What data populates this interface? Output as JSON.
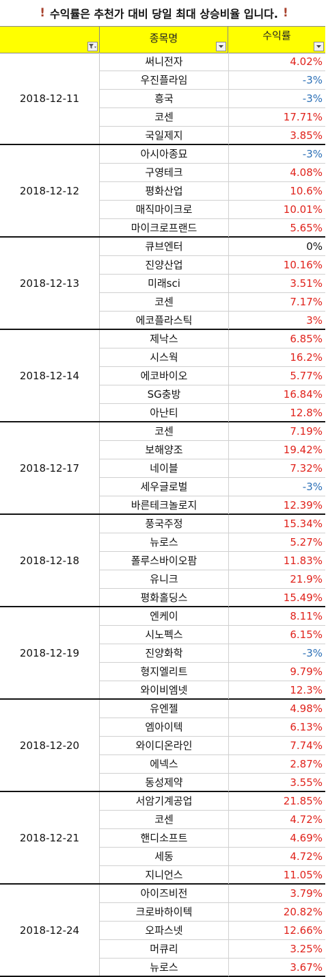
{
  "notice": {
    "icon_left": "!",
    "text": "수익률은 추천가 대비 당일 최대 상승비율 입니다.",
    "icon_right": "!"
  },
  "colors": {
    "positive": "#e0221b",
    "negative": "#2b6fb6",
    "zero": "#111111",
    "header_bg": "#ffff00",
    "accent": "#a8432e"
  },
  "header": {
    "stock_col": "종목명",
    "return_col": "수익률",
    "filter_icon_active": "filter-applied-icon",
    "filter_icon": "dropdown-arrow-icon"
  },
  "groups": [
    {
      "date": "2018-12-11",
      "rows": [
        {
          "name": "써니전자",
          "rate": "4.02%",
          "sign": "pos"
        },
        {
          "name": "우진플라임",
          "rate": "-3%",
          "sign": "neg"
        },
        {
          "name": "흥국",
          "rate": "-3%",
          "sign": "neg"
        },
        {
          "name": "코센",
          "rate": "17.71%",
          "sign": "pos"
        },
        {
          "name": "국일제지",
          "rate": "3.85%",
          "sign": "pos"
        }
      ]
    },
    {
      "date": "2018-12-12",
      "rows": [
        {
          "name": "아시아종묘",
          "rate": "-3%",
          "sign": "neg"
        },
        {
          "name": "구영테크",
          "rate": "4.08%",
          "sign": "pos"
        },
        {
          "name": "평화산업",
          "rate": "10.6%",
          "sign": "pos"
        },
        {
          "name": "매직마이크로",
          "rate": "10.01%",
          "sign": "pos"
        },
        {
          "name": "마이크로프랜드",
          "rate": "5.65%",
          "sign": "pos"
        }
      ]
    },
    {
      "date": "2018-12-13",
      "rows": [
        {
          "name": "큐브엔터",
          "rate": "0%",
          "sign": "zero"
        },
        {
          "name": "진양산업",
          "rate": "10.16%",
          "sign": "pos"
        },
        {
          "name": "미래sci",
          "rate": "3.51%",
          "sign": "pos"
        },
        {
          "name": "코센",
          "rate": "7.17%",
          "sign": "pos"
        },
        {
          "name": "에코플라스틱",
          "rate": "3%",
          "sign": "pos"
        }
      ]
    },
    {
      "date": "2018-12-14",
      "rows": [
        {
          "name": "제낙스",
          "rate": "6.85%",
          "sign": "pos"
        },
        {
          "name": "시스웍",
          "rate": "16.2%",
          "sign": "pos"
        },
        {
          "name": "에코바이오",
          "rate": "5.77%",
          "sign": "pos"
        },
        {
          "name": "SG충방",
          "rate": "16.84%",
          "sign": "pos"
        },
        {
          "name": "아난티",
          "rate": "12.8%",
          "sign": "pos"
        }
      ]
    },
    {
      "date": "2018-12-17",
      "rows": [
        {
          "name": "코센",
          "rate": "7.19%",
          "sign": "pos"
        },
        {
          "name": "보해양조",
          "rate": "19.42%",
          "sign": "pos"
        },
        {
          "name": "네이블",
          "rate": "7.32%",
          "sign": "pos"
        },
        {
          "name": "세우글로벌",
          "rate": "-3%",
          "sign": "neg"
        },
        {
          "name": "바른테크놀로지",
          "rate": "12.39%",
          "sign": "pos"
        }
      ]
    },
    {
      "date": "2018-12-18",
      "rows": [
        {
          "name": "풍국주정",
          "rate": "15.34%",
          "sign": "pos"
        },
        {
          "name": "뉴로스",
          "rate": "5.27%",
          "sign": "pos"
        },
        {
          "name": "폴루스바이오팜",
          "rate": "11.83%",
          "sign": "pos"
        },
        {
          "name": "유니크",
          "rate": "21.9%",
          "sign": "pos"
        },
        {
          "name": "평화홀딩스",
          "rate": "15.49%",
          "sign": "pos"
        }
      ]
    },
    {
      "date": "2018-12-19",
      "rows": [
        {
          "name": "엔케이",
          "rate": "8.11%",
          "sign": "pos"
        },
        {
          "name": "시노펙스",
          "rate": "6.15%",
          "sign": "pos"
        },
        {
          "name": "진양화학",
          "rate": "-3%",
          "sign": "neg"
        },
        {
          "name": "형지엘리트",
          "rate": "9.79%",
          "sign": "pos"
        },
        {
          "name": "와이비엠넷",
          "rate": "12.3%",
          "sign": "pos"
        }
      ]
    },
    {
      "date": "2018-12-20",
      "rows": [
        {
          "name": "유엔젤",
          "rate": "4.98%",
          "sign": "pos"
        },
        {
          "name": "엠아이텍",
          "rate": "6.13%",
          "sign": "pos"
        },
        {
          "name": "와이디온라인",
          "rate": "7.74%",
          "sign": "pos"
        },
        {
          "name": "에넥스",
          "rate": "2.87%",
          "sign": "pos"
        },
        {
          "name": "동성제약",
          "rate": "3.55%",
          "sign": "pos"
        }
      ]
    },
    {
      "date": "2018-12-21",
      "rows": [
        {
          "name": "서암기계공업",
          "rate": "21.85%",
          "sign": "pos"
        },
        {
          "name": "코센",
          "rate": "4.72%",
          "sign": "pos"
        },
        {
          "name": "핸디소프트",
          "rate": "4.69%",
          "sign": "pos"
        },
        {
          "name": "세동",
          "rate": "4.72%",
          "sign": "pos"
        },
        {
          "name": "지니언스",
          "rate": "11.05%",
          "sign": "pos"
        }
      ]
    },
    {
      "date": "2018-12-24",
      "rows": [
        {
          "name": "아이즈비전",
          "rate": "3.79%",
          "sign": "pos"
        },
        {
          "name": "크로바하이텍",
          "rate": "20.82%",
          "sign": "pos"
        },
        {
          "name": "오파스넷",
          "rate": "12.66%",
          "sign": "pos"
        },
        {
          "name": "머큐리",
          "rate": "3.25%",
          "sign": "pos"
        },
        {
          "name": "뉴로스",
          "rate": "3.67%",
          "sign": "pos"
        }
      ]
    }
  ]
}
